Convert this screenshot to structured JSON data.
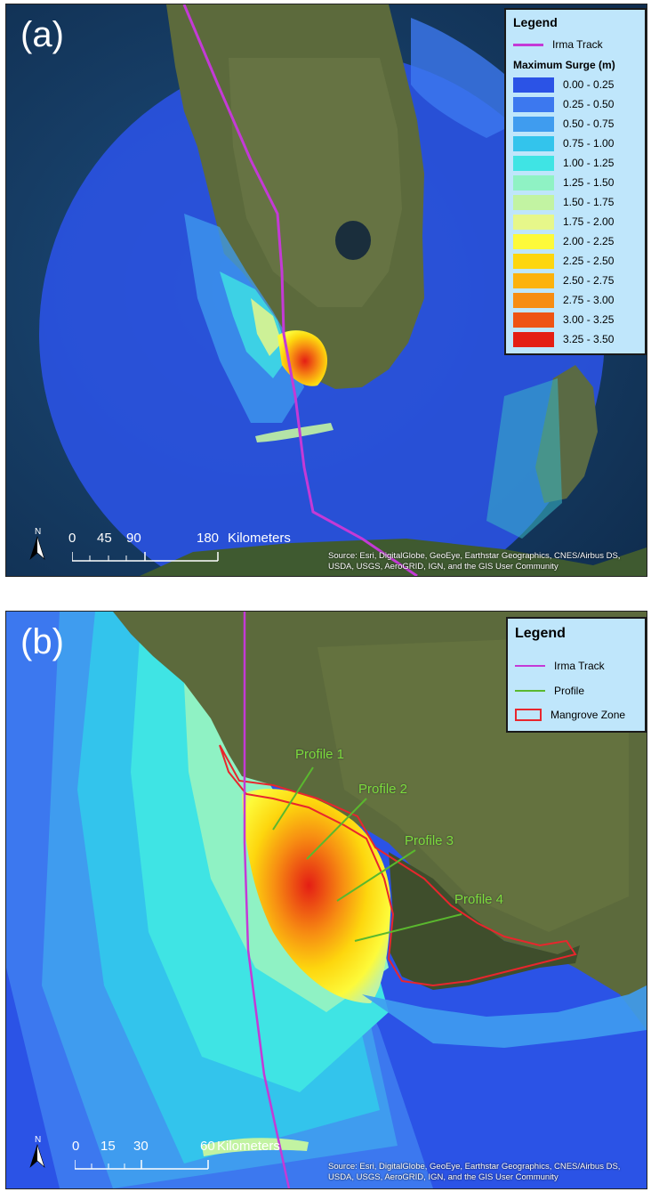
{
  "panel_a": {
    "label": "(a)",
    "legend": {
      "title": "Legend",
      "track_label": "Irma Track",
      "surge_heading": "Maximum Surge (m)",
      "classes": [
        {
          "label": "0.00 - 0.25",
          "color": "#2b53e6"
        },
        {
          "label": "0.25 - 0.50",
          "color": "#3c78ef"
        },
        {
          "label": "0.50 - 0.75",
          "color": "#3f9cef"
        },
        {
          "label": "0.75 - 1.00",
          "color": "#33c4ec"
        },
        {
          "label": "1.00 - 1.25",
          "color": "#3fe4e4"
        },
        {
          "label": "1.25 - 1.50",
          "color": "#8ff2c4"
        },
        {
          "label": "1.50 - 1.75",
          "color": "#c2f3a2"
        },
        {
          "label": "1.75 - 2.00",
          "color": "#e6f78a"
        },
        {
          "label": "2.00 - 2.25",
          "color": "#fdfa3a"
        },
        {
          "label": "2.25 - 2.50",
          "color": "#fdd60e"
        },
        {
          "label": "2.50 - 2.75",
          "color": "#fcb20c"
        },
        {
          "label": "2.75 - 3.00",
          "color": "#f78d12"
        },
        {
          "label": "3.00 - 3.25",
          "color": "#ee5414"
        },
        {
          "label": "3.25 - 3.50",
          "color": "#e41e14"
        }
      ]
    },
    "scale": {
      "ticks": [
        "0",
        "45",
        "90",
        "180"
      ],
      "unit": "Kilometers"
    },
    "attribution": "Source: Esri, DigitalGlobe, GeoEye, Earthstar Geographics, CNES/Airbus DS, USDA, USGS, AeroGRID, IGN, and the GIS User Community"
  },
  "panel_b": {
    "label": "(b)",
    "legend": {
      "title": "Legend",
      "items": [
        {
          "label": "Irma Track",
          "kind": "line",
          "color": "#c43ad6"
        },
        {
          "label": "Profile",
          "kind": "line",
          "color": "#5ab82e"
        },
        {
          "label": "Mangrove Zone",
          "kind": "box",
          "color": "#e8262d"
        }
      ]
    },
    "profiles": [
      "Profile 1",
      "Profile 2",
      "Profile 3",
      "Profile 4"
    ],
    "scale": {
      "ticks": [
        "0",
        "15",
        "30",
        "60"
      ],
      "unit": "Kilometers"
    },
    "attribution": "Source: Esri, DigitalGlobe, GeoEye, Earthstar Geographics, CNES/Airbus DS, USDA, USGS, AeroGRID, IGN, and the GIS User Community"
  },
  "colors": {
    "track": "#c43ad6",
    "profile_line": "#5ab82e",
    "profile_text": "#7cdc3c",
    "mangrove_outline": "#e8262d",
    "ocean_dark": "#143a63",
    "land": "#5c6a3c"
  },
  "icons": [
    "north-arrow-icon"
  ]
}
